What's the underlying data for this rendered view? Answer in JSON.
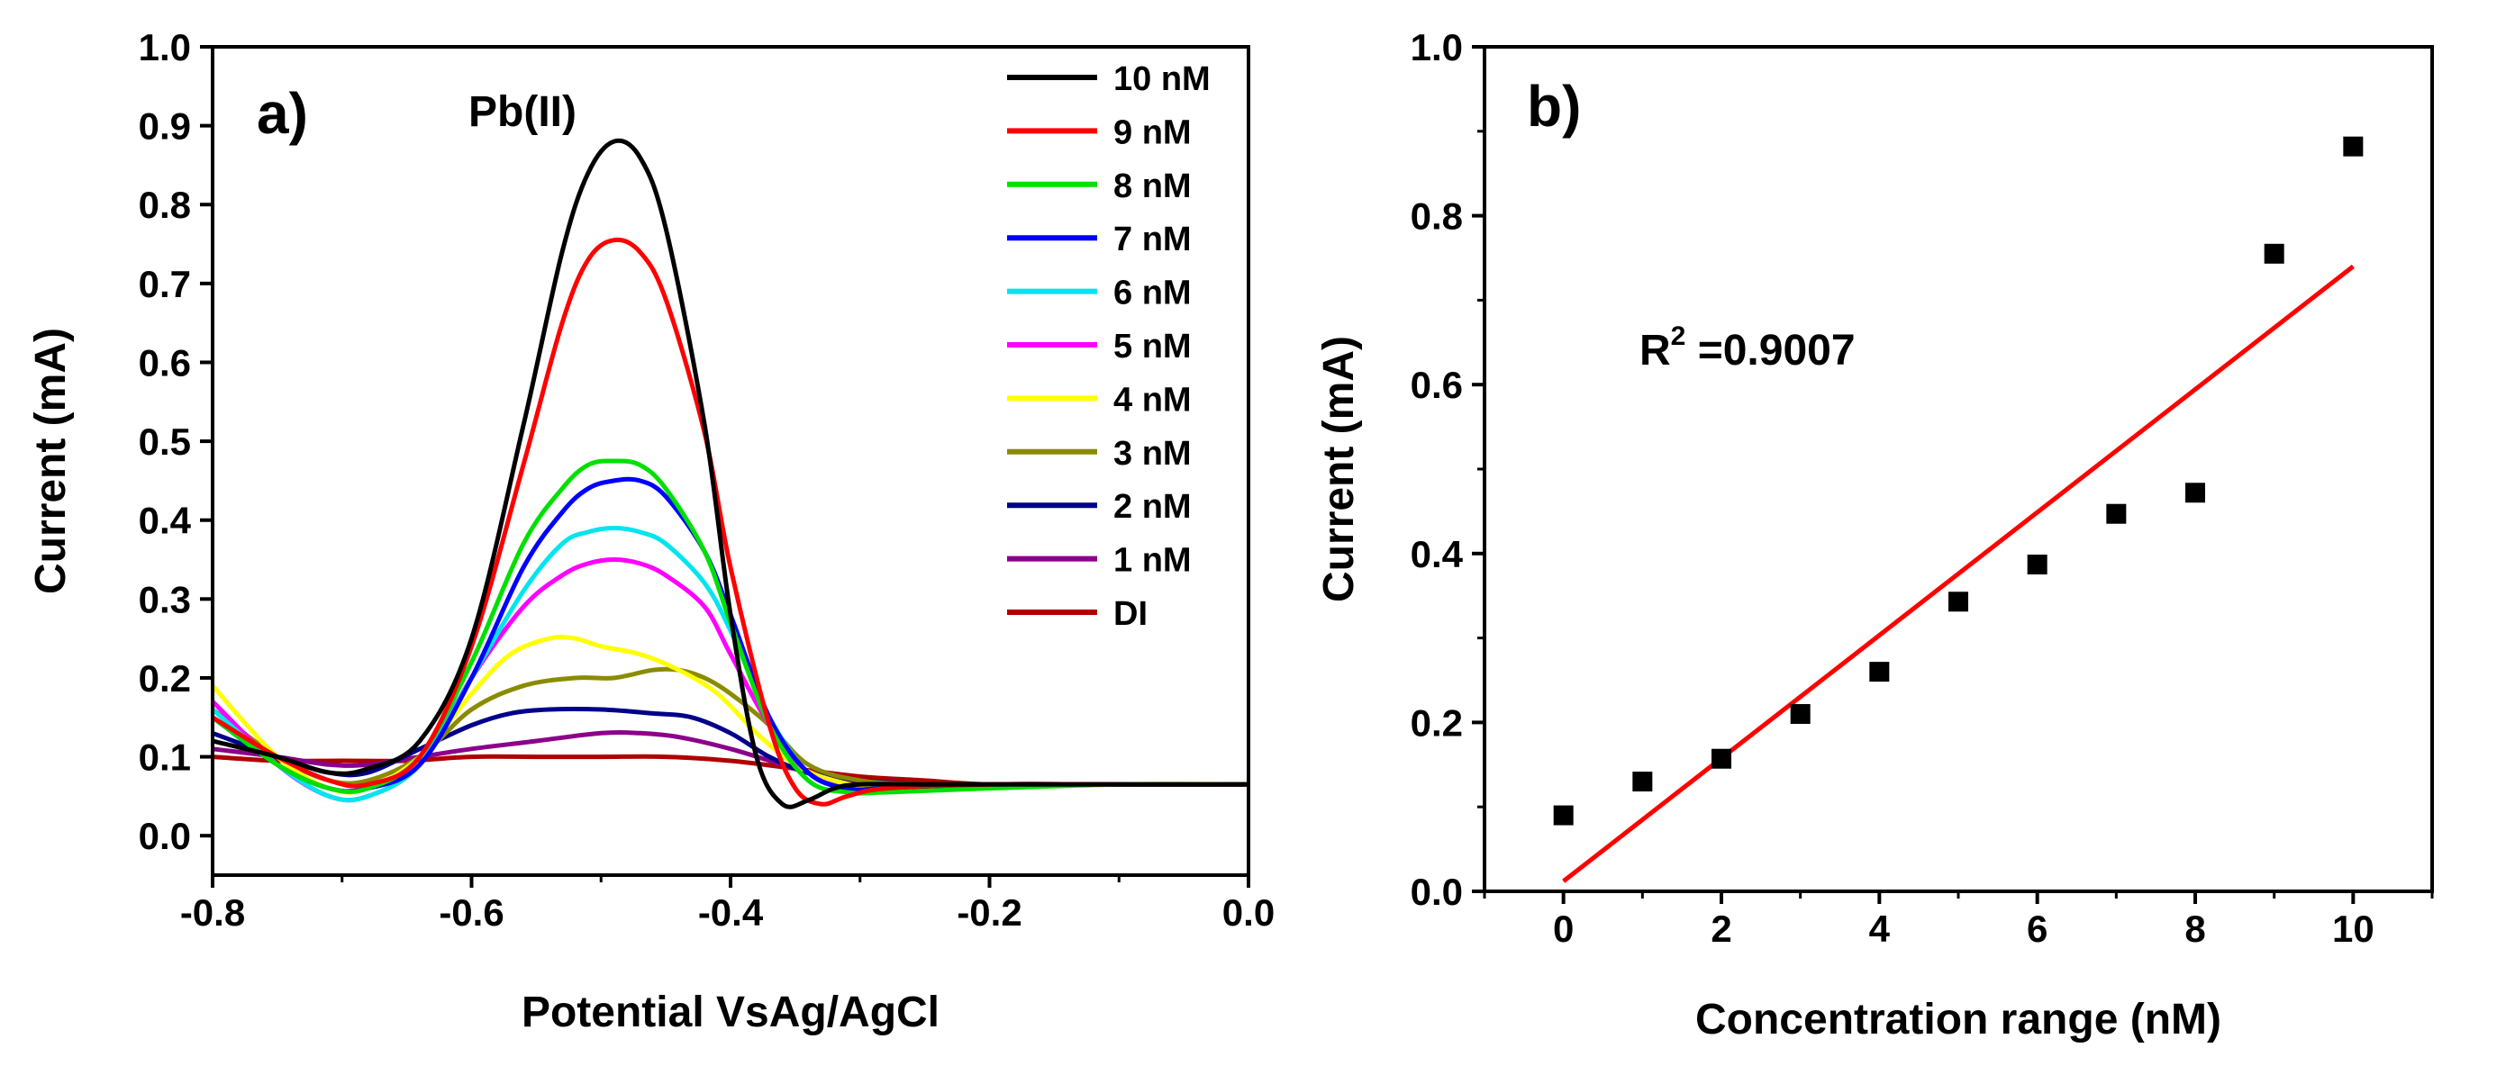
{
  "chart_data": [
    {
      "type": "line",
      "panel_label": "a)",
      "annotation": "Pb(II)",
      "xlabel": "Potential VsAg/AgCl",
      "ylabel": "Current (mA)",
      "xlim": [
        -0.8,
        0.0
      ],
      "ylim": [
        -0.05,
        1.0
      ],
      "xticks": [
        -0.8,
        -0.6,
        -0.4,
        -0.2,
        0.0
      ],
      "xtick_labels": [
        "-0.8",
        "-0.6",
        "-0.4",
        "-0.2",
        "0.0"
      ],
      "yticks": [
        0.0,
        0.1,
        0.2,
        0.3,
        0.4,
        0.5,
        0.6,
        0.7,
        0.8,
        0.9,
        1.0
      ],
      "ytick_labels": [
        "0.0",
        "0.1",
        "0.2",
        "0.3",
        "0.4",
        "0.5",
        "0.6",
        "0.7",
        "0.8",
        "0.9",
        "1.0"
      ],
      "legend_position": "top-right",
      "series": [
        {
          "name": "10 nM",
          "color": "#000000",
          "x": [
            -0.8,
            -0.75,
            -0.71,
            -0.68,
            -0.64,
            -0.6,
            -0.56,
            -0.53,
            -0.51,
            -0.49,
            -0.47,
            -0.45,
            -0.42,
            -0.4,
            -0.38,
            -0.36,
            -0.34,
            -0.32,
            -0.3,
            -0.25,
            -0.2,
            -0.1,
            0.0
          ],
          "y": [
            0.12,
            0.1,
            0.08,
            0.085,
            0.12,
            0.25,
            0.52,
            0.74,
            0.84,
            0.88,
            0.86,
            0.77,
            0.52,
            0.28,
            0.1,
            0.04,
            0.045,
            0.06,
            0.065,
            0.065,
            0.065,
            0.065,
            0.065
          ]
        },
        {
          "name": "9 nM",
          "color": "#ff0000",
          "x": [
            -0.8,
            -0.75,
            -0.71,
            -0.68,
            -0.64,
            -0.6,
            -0.56,
            -0.53,
            -0.51,
            -0.49,
            -0.47,
            -0.45,
            -0.42,
            -0.4,
            -0.37,
            -0.35,
            -0.33,
            -0.31,
            -0.28,
            -0.2,
            -0.1,
            0.0
          ],
          "y": [
            0.15,
            0.1,
            0.07,
            0.065,
            0.1,
            0.24,
            0.47,
            0.65,
            0.73,
            0.755,
            0.74,
            0.68,
            0.51,
            0.34,
            0.14,
            0.06,
            0.04,
            0.05,
            0.06,
            0.065,
            0.065,
            0.065
          ]
        },
        {
          "name": "8 nM",
          "color": "#00e000",
          "x": [
            -0.8,
            -0.75,
            -0.71,
            -0.68,
            -0.64,
            -0.6,
            -0.56,
            -0.53,
            -0.51,
            -0.49,
            -0.47,
            -0.45,
            -0.42,
            -0.4,
            -0.37,
            -0.34,
            -0.31,
            -0.28,
            -0.2,
            -0.1,
            0.0
          ],
          "y": [
            0.15,
            0.09,
            0.06,
            0.06,
            0.1,
            0.22,
            0.37,
            0.44,
            0.47,
            0.475,
            0.47,
            0.44,
            0.36,
            0.27,
            0.14,
            0.07,
            0.055,
            0.055,
            0.06,
            0.065,
            0.065
          ]
        },
        {
          "name": "7 nM",
          "color": "#0000ff",
          "x": [
            -0.8,
            -0.75,
            -0.71,
            -0.68,
            -0.64,
            -0.6,
            -0.56,
            -0.53,
            -0.51,
            -0.49,
            -0.47,
            -0.45,
            -0.42,
            -0.4,
            -0.37,
            -0.34,
            -0.31,
            -0.28,
            -0.2,
            -0.1,
            0.0
          ],
          "y": [
            0.15,
            0.09,
            0.06,
            0.06,
            0.09,
            0.2,
            0.34,
            0.41,
            0.44,
            0.45,
            0.45,
            0.43,
            0.36,
            0.28,
            0.15,
            0.08,
            0.06,
            0.06,
            0.065,
            0.065,
            0.065
          ]
        },
        {
          "name": "6 nM",
          "color": "#00e5ee",
          "x": [
            -0.8,
            -0.75,
            -0.71,
            -0.68,
            -0.64,
            -0.6,
            -0.56,
            -0.53,
            -0.51,
            -0.49,
            -0.47,
            -0.45,
            -0.42,
            -0.4,
            -0.37,
            -0.34,
            -0.31,
            -0.28,
            -0.2,
            -0.1,
            0.0
          ],
          "y": [
            0.16,
            0.09,
            0.05,
            0.05,
            0.09,
            0.2,
            0.31,
            0.37,
            0.385,
            0.39,
            0.385,
            0.37,
            0.32,
            0.26,
            0.15,
            0.08,
            0.06,
            0.06,
            0.065,
            0.065,
            0.065
          ]
        },
        {
          "name": "5 nM",
          "color": "#ff00ff",
          "x": [
            -0.8,
            -0.75,
            -0.71,
            -0.68,
            -0.64,
            -0.6,
            -0.56,
            -0.53,
            -0.51,
            -0.49,
            -0.47,
            -0.45,
            -0.42,
            -0.4,
            -0.37,
            -0.34,
            -0.31,
            -0.28,
            -0.2,
            -0.1,
            0.0
          ],
          "y": [
            0.17,
            0.09,
            0.05,
            0.05,
            0.09,
            0.2,
            0.29,
            0.33,
            0.345,
            0.35,
            0.345,
            0.33,
            0.29,
            0.23,
            0.14,
            0.08,
            0.06,
            0.06,
            0.065,
            0.065,
            0.065
          ]
        },
        {
          "name": "4 nM",
          "color": "#ffff00",
          "x": [
            -0.8,
            -0.75,
            -0.71,
            -0.68,
            -0.64,
            -0.6,
            -0.57,
            -0.54,
            -0.52,
            -0.5,
            -0.47,
            -0.44,
            -0.41,
            -0.38,
            -0.35,
            -0.32,
            -0.28,
            -0.2,
            -0.1,
            0.0
          ],
          "y": [
            0.19,
            0.1,
            0.06,
            0.06,
            0.1,
            0.18,
            0.23,
            0.25,
            0.25,
            0.24,
            0.23,
            0.21,
            0.18,
            0.13,
            0.09,
            0.07,
            0.06,
            0.065,
            0.065,
            0.065
          ]
        },
        {
          "name": "3 nM",
          "color": "#8b8b00",
          "x": [
            -0.8,
            -0.75,
            -0.71,
            -0.68,
            -0.64,
            -0.6,
            -0.56,
            -0.52,
            -0.49,
            -0.46,
            -0.44,
            -0.42,
            -0.4,
            -0.37,
            -0.34,
            -0.3,
            -0.25,
            -0.2,
            -0.1,
            0.0
          ],
          "y": [
            0.16,
            0.1,
            0.07,
            0.07,
            0.1,
            0.16,
            0.19,
            0.2,
            0.2,
            0.21,
            0.21,
            0.2,
            0.18,
            0.14,
            0.09,
            0.07,
            0.065,
            0.065,
            0.065,
            0.065
          ]
        },
        {
          "name": "2 nM",
          "color": "#00008b",
          "x": [
            -0.8,
            -0.75,
            -0.71,
            -0.68,
            -0.64,
            -0.6,
            -0.57,
            -0.54,
            -0.5,
            -0.46,
            -0.43,
            -0.4,
            -0.37,
            -0.34,
            -0.3,
            -0.25,
            -0.2,
            -0.1,
            0.0
          ],
          "y": [
            0.13,
            0.1,
            0.08,
            0.08,
            0.11,
            0.14,
            0.155,
            0.16,
            0.16,
            0.155,
            0.15,
            0.13,
            0.1,
            0.08,
            0.07,
            0.065,
            0.065,
            0.065,
            0.065
          ]
        },
        {
          "name": "1 nM",
          "color": "#8b008b",
          "x": [
            -0.8,
            -0.75,
            -0.71,
            -0.68,
            -0.64,
            -0.6,
            -0.55,
            -0.5,
            -0.47,
            -0.44,
            -0.4,
            -0.36,
            -0.32,
            -0.28,
            -0.2,
            -0.1,
            0.0
          ],
          "y": [
            0.11,
            0.1,
            0.09,
            0.09,
            0.1,
            0.11,
            0.12,
            0.13,
            0.13,
            0.125,
            0.11,
            0.09,
            0.07,
            0.065,
            0.065,
            0.065,
            0.065
          ]
        },
        {
          "name": "DI",
          "color": "#b00000",
          "x": [
            -0.8,
            -0.75,
            -0.7,
            -0.65,
            -0.6,
            -0.55,
            -0.5,
            -0.45,
            -0.4,
            -0.35,
            -0.3,
            -0.25,
            -0.2,
            -0.1,
            0.0
          ],
          "y": [
            0.1,
            0.095,
            0.095,
            0.095,
            0.1,
            0.1,
            0.1,
            0.1,
            0.095,
            0.085,
            0.075,
            0.07,
            0.065,
            0.065,
            0.065
          ]
        }
      ]
    },
    {
      "type": "scatter",
      "panel_label": "b)",
      "annotation_main": "R",
      "annotation_sup": "2",
      "annotation_rest": " =0.9007",
      "xlabel": "Concentration range (nM)",
      "ylabel": "Current (mA)",
      "xlim": [
        -1,
        11
      ],
      "ylim": [
        0.0,
        1.0
      ],
      "xticks": [
        0,
        2,
        4,
        6,
        8,
        10
      ],
      "xtick_labels": [
        "0",
        "2",
        "4",
        "6",
        "8",
        "10"
      ],
      "yticks": [
        0.0,
        0.2,
        0.4,
        0.6,
        0.8,
        1.0
      ],
      "ytick_labels": [
        "0.0",
        "0.2",
        "0.4",
        "0.6",
        "0.8",
        "1.0"
      ],
      "points": {
        "x": [
          0,
          1,
          2,
          3,
          4,
          5,
          6,
          7,
          8,
          9,
          10
        ],
        "y": [
          0.09,
          0.13,
          0.157,
          0.21,
          0.26,
          0.343,
          0.387,
          0.447,
          0.472,
          0.755,
          0.882
        ],
        "color": "#000000"
      },
      "fit": {
        "x": [
          0,
          10
        ],
        "y": [
          0.012,
          0.74
        ],
        "color": "#ff0000"
      }
    }
  ]
}
